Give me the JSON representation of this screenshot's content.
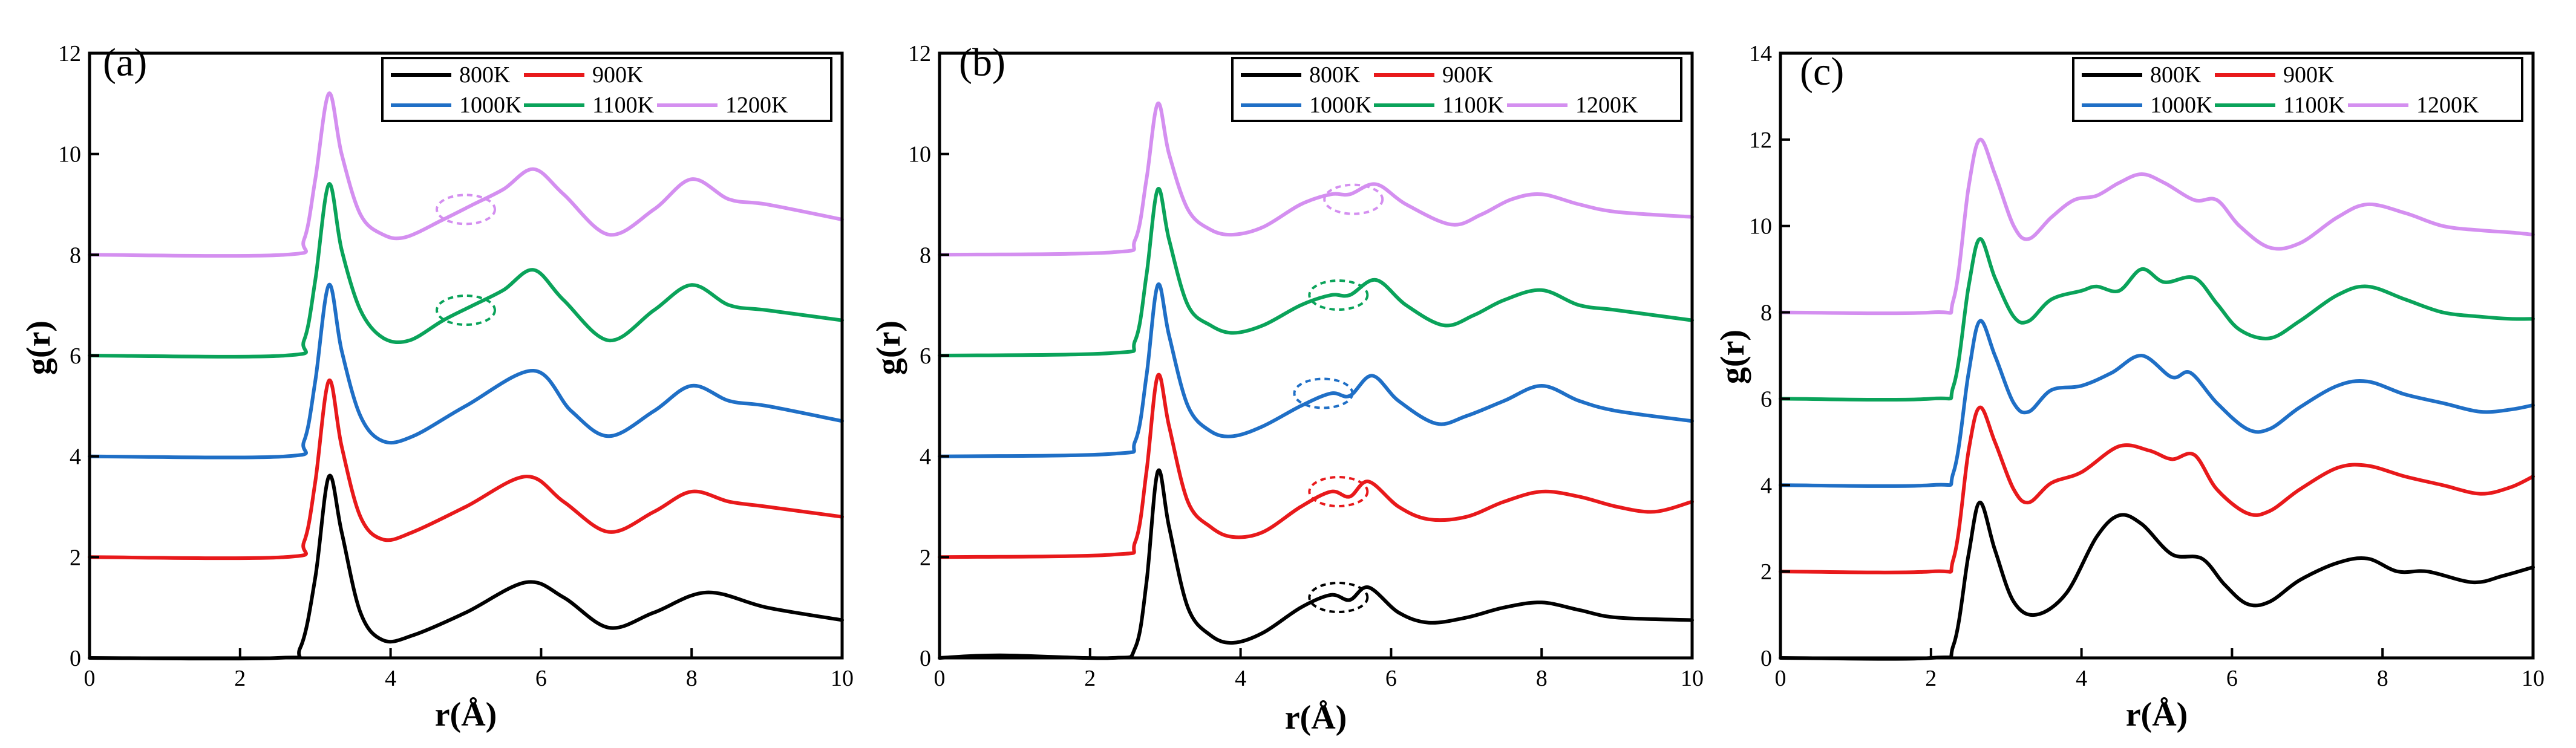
{
  "figure": {
    "type": "radial-distribution-function",
    "panels": 3
  },
  "colors": {
    "800K": "#000000",
    "900K": "#e8191b",
    "1000K": "#1f6fc6",
    "1100K": "#0aa35a",
    "1200K": "#d48ff0"
  },
  "chart_data": [
    {
      "type": "line",
      "panel_label": "(a)",
      "xlabel": "r(Å)",
      "ylabel": "g(r)",
      "xlim": [
        0,
        10
      ],
      "ylim": [
        0,
        12
      ],
      "xticks": [
        0,
        2,
        4,
        6,
        8,
        10
      ],
      "yticks": [
        0,
        2,
        4,
        6,
        8,
        10,
        12
      ],
      "legend": {
        "position": "top-right",
        "entries": [
          "800K",
          "900K",
          "1000K",
          "1100K",
          "1200K"
        ]
      },
      "series": [
        {
          "name": "800K",
          "color": "#000000",
          "offset": 0,
          "x": [
            0,
            2.5,
            2.8,
            3.0,
            3.18,
            3.35,
            3.6,
            3.9,
            4.3,
            5.0,
            5.8,
            6.3,
            6.9,
            7.5,
            8.2,
            9.0,
            10
          ],
          "y": [
            0,
            0,
            0.2,
            1.6,
            3.6,
            2.5,
            0.9,
            0.35,
            0.45,
            0.9,
            1.5,
            1.2,
            0.6,
            0.9,
            1.3,
            1.0,
            0.75
          ]
        },
        {
          "name": "900K",
          "color": "#e8191b",
          "offset": 2,
          "x": [
            0,
            2.6,
            2.85,
            3.0,
            3.18,
            3.35,
            3.6,
            3.9,
            4.3,
            5.0,
            5.8,
            6.3,
            6.9,
            7.5,
            8.0,
            8.5,
            9.0,
            10
          ],
          "y": [
            2,
            2,
            2.3,
            3.5,
            5.5,
            4.2,
            2.8,
            2.35,
            2.5,
            3.0,
            3.6,
            3.1,
            2.5,
            2.9,
            3.3,
            3.1,
            3.0,
            2.8
          ]
        },
        {
          "name": "1000K",
          "color": "#1f6fc6",
          "offset": 4,
          "x": [
            0,
            2.6,
            2.85,
            3.0,
            3.18,
            3.35,
            3.6,
            3.9,
            4.3,
            5.0,
            5.9,
            6.4,
            6.9,
            7.5,
            8.0,
            8.5,
            9.0,
            10
          ],
          "y": [
            4,
            4,
            4.3,
            5.5,
            7.4,
            6.1,
            4.8,
            4.3,
            4.4,
            5.0,
            5.7,
            4.9,
            4.4,
            4.9,
            5.4,
            5.1,
            5.0,
            4.7
          ]
        },
        {
          "name": "1100K",
          "color": "#0aa35a",
          "offset": 6,
          "x": [
            0,
            2.6,
            2.85,
            3.0,
            3.18,
            3.35,
            3.6,
            3.9,
            4.25,
            4.7,
            5.1,
            5.5,
            5.9,
            6.3,
            6.9,
            7.5,
            8.0,
            8.5,
            9.0,
            10
          ],
          "y": [
            6,
            6,
            6.3,
            7.5,
            9.4,
            8.1,
            6.9,
            6.35,
            6.3,
            6.7,
            7.0,
            7.3,
            7.7,
            7.1,
            6.3,
            6.9,
            7.4,
            7.0,
            6.9,
            6.7
          ]
        },
        {
          "name": "1200K",
          "color": "#d48ff0",
          "offset": 8,
          "x": [
            0,
            2.6,
            2.85,
            3.0,
            3.18,
            3.35,
            3.6,
            3.9,
            4.2,
            4.7,
            5.1,
            5.5,
            5.9,
            6.3,
            6.9,
            7.5,
            8.0,
            8.5,
            9.0,
            10
          ],
          "y": [
            8,
            8,
            8.3,
            9.5,
            11.2,
            10.0,
            8.8,
            8.4,
            8.35,
            8.7,
            9.0,
            9.3,
            9.7,
            9.2,
            8.4,
            8.9,
            9.5,
            9.1,
            9.0,
            8.7
          ]
        }
      ],
      "annotations": [
        {
          "type": "dashed-ellipse",
          "color": "#0aa35a",
          "center": [
            5.0,
            6.9
          ]
        },
        {
          "type": "dashed-ellipse",
          "color": "#d48ff0",
          "center": [
            5.0,
            8.9
          ]
        }
      ]
    },
    {
      "type": "line",
      "panel_label": "(b)",
      "xlabel": "r(Å)",
      "ylabel": "g(r)",
      "xlim": [
        0,
        10
      ],
      "ylim": [
        0,
        12
      ],
      "xticks": [
        0,
        2,
        4,
        6,
        8,
        10
      ],
      "yticks": [
        0,
        2,
        4,
        6,
        8,
        10,
        12
      ],
      "legend": {
        "position": "top-right",
        "entries": [
          "800K",
          "900K",
          "1000K",
          "1100K",
          "1200K"
        ]
      },
      "series": [
        {
          "name": "800K",
          "color": "#000000",
          "offset": 0,
          "x": [
            0,
            0.8,
            2.3,
            2.6,
            2.75,
            2.9,
            3.05,
            3.3,
            3.6,
            3.9,
            4.3,
            4.8,
            5.2,
            5.45,
            5.7,
            6.1,
            6.5,
            7.0,
            7.5,
            8.0,
            8.5,
            9.0,
            10
          ],
          "y": [
            0,
            0.05,
            0,
            0.2,
            1.5,
            3.7,
            2.6,
            1.0,
            0.45,
            0.3,
            0.5,
            1.0,
            1.25,
            1.15,
            1.4,
            0.9,
            0.7,
            0.8,
            1.0,
            1.1,
            0.95,
            0.8,
            0.75
          ]
        },
        {
          "name": "900K",
          "color": "#e8191b",
          "offset": 2,
          "x": [
            0,
            2.3,
            2.6,
            2.75,
            2.9,
            3.05,
            3.3,
            3.6,
            3.9,
            4.3,
            4.8,
            5.2,
            5.45,
            5.7,
            6.1,
            6.5,
            7.0,
            7.5,
            8.0,
            8.5,
            9.0,
            9.5,
            10
          ],
          "y": [
            2,
            2.05,
            2.3,
            3.7,
            5.6,
            4.6,
            3.1,
            2.6,
            2.4,
            2.5,
            3.0,
            3.3,
            3.2,
            3.5,
            3.0,
            2.75,
            2.8,
            3.1,
            3.3,
            3.2,
            3.0,
            2.9,
            3.1
          ]
        },
        {
          "name": "1000K",
          "color": "#1f6fc6",
          "offset": 4,
          "x": [
            0,
            2.3,
            2.6,
            2.75,
            2.9,
            3.05,
            3.3,
            3.6,
            3.9,
            4.3,
            4.8,
            5.2,
            5.45,
            5.75,
            6.1,
            6.6,
            7.0,
            7.5,
            8.0,
            8.5,
            9.0,
            10
          ],
          "y": [
            4,
            4.05,
            4.3,
            5.6,
            7.4,
            6.4,
            5.0,
            4.5,
            4.4,
            4.6,
            5.0,
            5.25,
            5.2,
            5.6,
            5.1,
            4.65,
            4.8,
            5.1,
            5.4,
            5.1,
            4.9,
            4.7
          ]
        },
        {
          "name": "1100K",
          "color": "#0aa35a",
          "offset": 6,
          "x": [
            0,
            2.3,
            2.6,
            2.75,
            2.9,
            3.05,
            3.3,
            3.6,
            3.9,
            4.3,
            4.8,
            5.2,
            5.45,
            5.8,
            6.2,
            6.7,
            7.1,
            7.5,
            8.0,
            8.5,
            9.0,
            10
          ],
          "y": [
            6,
            6.05,
            6.3,
            7.6,
            9.3,
            8.3,
            7.0,
            6.6,
            6.45,
            6.6,
            7.0,
            7.2,
            7.2,
            7.5,
            7.0,
            6.6,
            6.8,
            7.1,
            7.3,
            7.0,
            6.9,
            6.7
          ]
        },
        {
          "name": "1200K",
          "color": "#d48ff0",
          "offset": 8,
          "x": [
            0,
            2.3,
            2.6,
            2.75,
            2.9,
            3.05,
            3.3,
            3.6,
            3.9,
            4.3,
            4.8,
            5.2,
            5.45,
            5.8,
            6.2,
            6.8,
            7.2,
            7.6,
            8.0,
            8.5,
            9.0,
            10
          ],
          "y": [
            8,
            8.05,
            8.3,
            9.5,
            11.0,
            10.0,
            8.9,
            8.5,
            8.4,
            8.55,
            9.0,
            9.2,
            9.2,
            9.4,
            9.0,
            8.6,
            8.8,
            9.1,
            9.2,
            9.0,
            8.85,
            8.75
          ]
        }
      ],
      "annotations": [
        {
          "type": "dashed-ellipse",
          "color": "#000000",
          "center": [
            5.3,
            1.2
          ]
        },
        {
          "type": "dashed-ellipse",
          "color": "#e8191b",
          "center": [
            5.3,
            3.3
          ]
        },
        {
          "type": "dashed-ellipse",
          "color": "#1f6fc6",
          "center": [
            5.1,
            5.25
          ]
        },
        {
          "type": "dashed-ellipse",
          "color": "#0aa35a",
          "center": [
            5.3,
            7.2
          ]
        },
        {
          "type": "dashed-ellipse",
          "color": "#d48ff0",
          "center": [
            5.5,
            9.1
          ]
        }
      ]
    },
    {
      "type": "line",
      "panel_label": "(c)",
      "xlabel": "r(Å)",
      "ylabel": "g(r)",
      "xlim": [
        0,
        10
      ],
      "ylim": [
        0,
        14
      ],
      "xticks": [
        0,
        2,
        4,
        6,
        8,
        10
      ],
      "yticks": [
        0,
        2,
        4,
        6,
        8,
        10,
        12,
        14
      ],
      "legend": {
        "position": "top-right",
        "entries": [
          "800K",
          "900K",
          "1000K",
          "1100K",
          "1200K"
        ]
      },
      "series": [
        {
          "name": "800K",
          "color": "#000000",
          "offset": 0,
          "x": [
            0,
            2.0,
            2.3,
            2.5,
            2.65,
            2.85,
            3.1,
            3.4,
            3.8,
            4.2,
            4.5,
            4.8,
            5.2,
            5.6,
            5.9,
            6.2,
            6.5,
            6.9,
            7.4,
            7.8,
            8.2,
            8.6,
            9.2,
            9.6,
            10
          ],
          "y": [
            0,
            0,
            0.3,
            2.4,
            3.6,
            2.5,
            1.3,
            1.0,
            1.5,
            2.8,
            3.3,
            3.1,
            2.4,
            2.3,
            1.7,
            1.25,
            1.3,
            1.8,
            2.2,
            2.3,
            2.0,
            2.0,
            1.75,
            1.9,
            2.1
          ]
        },
        {
          "name": "900K",
          "color": "#e8191b",
          "offset": 2,
          "x": [
            0,
            2.0,
            2.3,
            2.5,
            2.65,
            2.85,
            3.1,
            3.3,
            3.6,
            4.0,
            4.5,
            4.9,
            5.2,
            5.5,
            5.8,
            6.2,
            6.5,
            6.9,
            7.4,
            7.8,
            8.3,
            8.8,
            9.3,
            9.7,
            10
          ],
          "y": [
            2,
            2,
            2.3,
            4.8,
            5.8,
            5.0,
            3.9,
            3.6,
            4.05,
            4.3,
            4.9,
            4.8,
            4.6,
            4.7,
            3.9,
            3.35,
            3.4,
            3.9,
            4.4,
            4.45,
            4.2,
            4.0,
            3.8,
            3.95,
            4.2
          ]
        },
        {
          "name": "1000K",
          "color": "#1f6fc6",
          "offset": 4,
          "x": [
            0,
            2.0,
            2.3,
            2.5,
            2.65,
            2.85,
            3.1,
            3.3,
            3.6,
            4.0,
            4.4,
            4.8,
            5.2,
            5.45,
            5.8,
            6.2,
            6.5,
            6.9,
            7.4,
            7.8,
            8.3,
            8.8,
            9.3,
            9.7,
            10
          ],
          "y": [
            4,
            4,
            4.3,
            6.6,
            7.8,
            7.0,
            5.9,
            5.7,
            6.2,
            6.3,
            6.6,
            7.0,
            6.5,
            6.6,
            5.9,
            5.3,
            5.3,
            5.8,
            6.3,
            6.4,
            6.1,
            5.9,
            5.7,
            5.75,
            5.85
          ]
        },
        {
          "name": "1100K",
          "color": "#0aa35a",
          "offset": 6,
          "x": [
            0,
            2.0,
            2.3,
            2.5,
            2.65,
            2.85,
            3.1,
            3.3,
            3.6,
            4.0,
            4.2,
            4.5,
            4.8,
            5.1,
            5.5,
            5.8,
            6.1,
            6.5,
            6.9,
            7.4,
            7.8,
            8.3,
            8.8,
            9.3,
            9.7,
            10
          ],
          "y": [
            6,
            6,
            6.3,
            8.6,
            9.7,
            8.8,
            7.9,
            7.8,
            8.3,
            8.5,
            8.6,
            8.5,
            9.0,
            8.7,
            8.8,
            8.2,
            7.6,
            7.4,
            7.8,
            8.4,
            8.6,
            8.3,
            8.0,
            7.9,
            7.85,
            7.85
          ]
        },
        {
          "name": "1200K",
          "color": "#d48ff0",
          "offset": 8,
          "x": [
            0,
            2.0,
            2.3,
            2.5,
            2.65,
            2.85,
            3.1,
            3.3,
            3.6,
            3.9,
            4.2,
            4.5,
            4.8,
            5.1,
            5.5,
            5.8,
            6.1,
            6.5,
            6.9,
            7.4,
            7.8,
            8.3,
            8.8,
            9.3,
            9.7,
            10
          ],
          "y": [
            8,
            8,
            8.3,
            10.9,
            12.0,
            11.2,
            10.0,
            9.7,
            10.2,
            10.6,
            10.7,
            11.0,
            11.2,
            11.0,
            10.6,
            10.6,
            10.0,
            9.5,
            9.6,
            10.2,
            10.5,
            10.3,
            10.0,
            9.9,
            9.85,
            9.8
          ]
        }
      ],
      "annotations": []
    }
  ]
}
